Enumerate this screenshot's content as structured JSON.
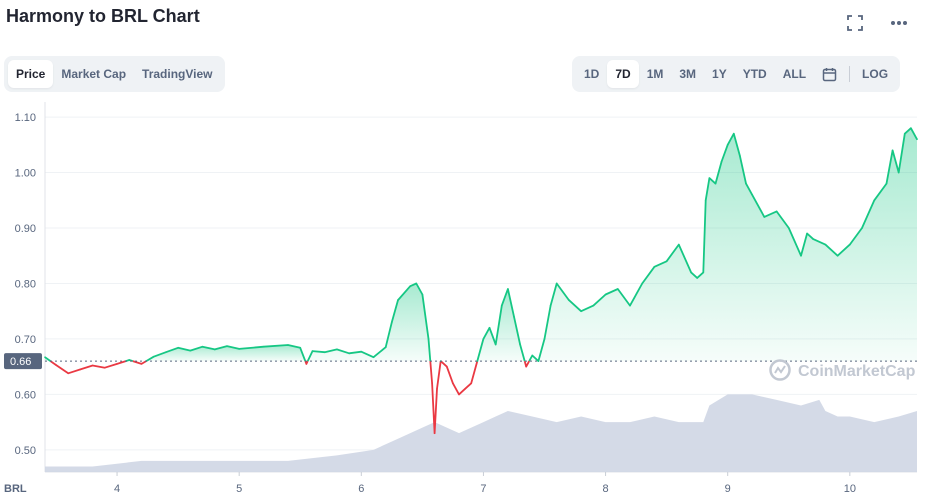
{
  "header": {
    "title": "Harmony to BRL Chart"
  },
  "icons": {
    "expand": "expand-icon",
    "more": "more-icon",
    "calendar": "calendar-icon"
  },
  "tabs": [
    "Price",
    "Market Cap",
    "TradingView"
  ],
  "ranges": [
    "1D",
    "7D",
    "1M",
    "3M",
    "1Y",
    "YTD",
    "ALL"
  ],
  "range_active": "7D",
  "log_label": "LOG",
  "colors": {
    "up": "#16c784",
    "down": "#ea3943",
    "volume": "#cfd6e4",
    "ref_badge": "#58667e"
  },
  "watermark": "CoinMarketCap",
  "chart_data": {
    "type": "line",
    "currency_label": "BRL",
    "reference_value": 0.66,
    "reference_label": "0.66",
    "y_ticks": [
      "0.50",
      "0.60",
      "0.70",
      "0.80",
      "0.90",
      "1.00",
      "1.10"
    ],
    "ylim": [
      0.46,
      1.12
    ],
    "x_ticks": [
      "4",
      "5",
      "6",
      "7",
      "8",
      "9",
      "10"
    ],
    "xlim": [
      3.41,
      10.55
    ],
    "series": [
      {
        "x": [
          3.41,
          3.5,
          3.6,
          3.7,
          3.8,
          3.9,
          4.0,
          4.1,
          4.2,
          4.3,
          4.4,
          4.5,
          4.6,
          4.7,
          4.8,
          4.9,
          5.0,
          5.2,
          5.4,
          5.5,
          5.55,
          5.6,
          5.7,
          5.8,
          5.9,
          6.0,
          6.1,
          6.2,
          6.25,
          6.3,
          6.4,
          6.45,
          6.5,
          6.55,
          6.58,
          6.6,
          6.62,
          6.65,
          6.7,
          6.75,
          6.8,
          6.85,
          6.9,
          6.95,
          7.0,
          7.05,
          7.1,
          7.15,
          7.2,
          7.25,
          7.3,
          7.35,
          7.4,
          7.45,
          7.5,
          7.55,
          7.6,
          7.7,
          7.8,
          7.9,
          8.0,
          8.1,
          8.2,
          8.3,
          8.4,
          8.5,
          8.6,
          8.7,
          8.75,
          8.8,
          8.82,
          8.85,
          8.9,
          8.95,
          9.0,
          9.05,
          9.1,
          9.15,
          9.2,
          9.3,
          9.4,
          9.5,
          9.6,
          9.65,
          9.7,
          9.8,
          9.9,
          10.0,
          10.1,
          10.2,
          10.3,
          10.35,
          10.4,
          10.45,
          10.5,
          10.55
        ],
        "values": [
          0.667,
          0.653,
          0.638,
          0.645,
          0.652,
          0.648,
          0.655,
          0.662,
          0.655,
          0.668,
          0.676,
          0.684,
          0.679,
          0.686,
          0.681,
          0.687,
          0.682,
          0.686,
          0.689,
          0.684,
          0.655,
          0.678,
          0.676,
          0.681,
          0.674,
          0.677,
          0.667,
          0.685,
          0.73,
          0.77,
          0.795,
          0.8,
          0.78,
          0.7,
          0.62,
          0.53,
          0.61,
          0.66,
          0.65,
          0.62,
          0.6,
          0.61,
          0.62,
          0.66,
          0.7,
          0.72,
          0.69,
          0.76,
          0.79,
          0.74,
          0.69,
          0.65,
          0.67,
          0.66,
          0.7,
          0.76,
          0.8,
          0.77,
          0.75,
          0.76,
          0.78,
          0.79,
          0.76,
          0.8,
          0.83,
          0.84,
          0.87,
          0.82,
          0.81,
          0.82,
          0.95,
          0.99,
          0.98,
          1.02,
          1.05,
          1.07,
          1.03,
          0.98,
          0.96,
          0.92,
          0.93,
          0.9,
          0.85,
          0.89,
          0.88,
          0.87,
          0.85,
          0.87,
          0.9,
          0.95,
          0.98,
          1.04,
          1.0,
          1.07,
          1.08,
          1.06
        ]
      }
    ],
    "volume": {
      "x": [
        3.41,
        3.8,
        4.2,
        4.6,
        5.0,
        5.4,
        5.8,
        6.1,
        6.3,
        6.5,
        6.6,
        6.8,
        7.0,
        7.1,
        7.2,
        7.4,
        7.6,
        7.8,
        8.0,
        8.2,
        8.4,
        8.6,
        8.75,
        8.8,
        8.85,
        9.0,
        9.2,
        9.4,
        9.6,
        9.75,
        9.8,
        9.9,
        10.0,
        10.2,
        10.4,
        10.55
      ],
      "values": [
        0.47,
        0.47,
        0.48,
        0.48,
        0.48,
        0.48,
        0.49,
        0.5,
        0.52,
        0.54,
        0.55,
        0.53,
        0.55,
        0.56,
        0.57,
        0.56,
        0.55,
        0.56,
        0.55,
        0.55,
        0.56,
        0.55,
        0.55,
        0.55,
        0.58,
        0.6,
        0.6,
        0.59,
        0.58,
        0.59,
        0.57,
        0.56,
        0.56,
        0.55,
        0.56,
        0.57
      ]
    }
  }
}
